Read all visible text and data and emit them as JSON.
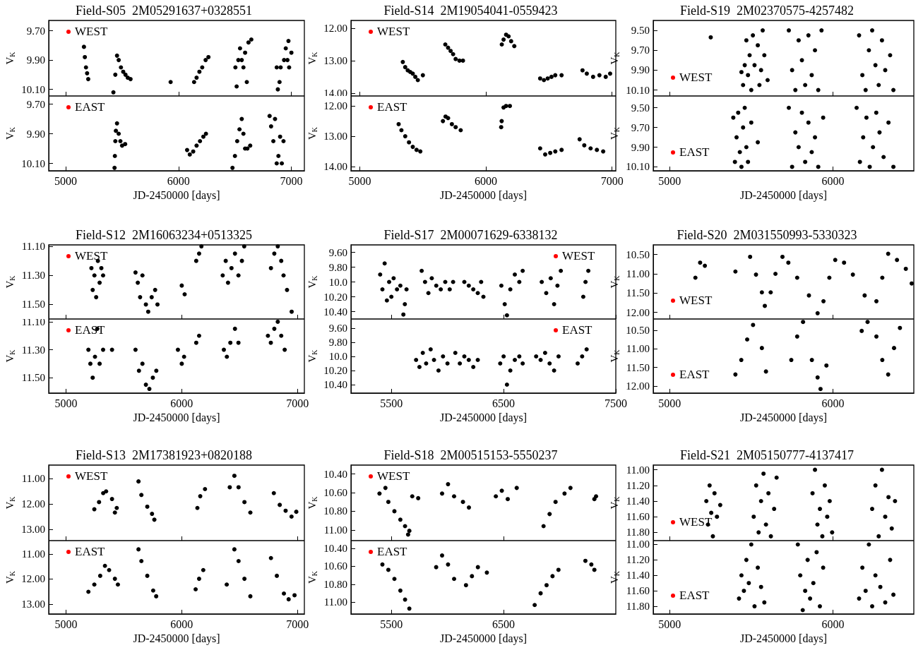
{
  "chart_data": [
    {
      "type": "scatter",
      "title": "Field-S05  2M05291637+0328551",
      "ylabel": "V$_{K}$",
      "annotations": [
        "WEST"
      ],
      "marker": "circle",
      "color": "#000000",
      "tick_labels": "y",
      "xlim": [
        4850,
        7115
      ],
      "xticks": [
        5000,
        6000,
        7000
      ],
      "ylim": [
        10.145,
        9.63
      ],
      "yticks": [
        {
          "value": 9.7,
          "label": "9.70"
        },
        {
          "value": 9.9,
          "label": "9.90"
        },
        {
          "value": 10.1,
          "label": "10.10"
        }
      ],
      "x": [
        5162,
        5170,
        5180,
        5190,
        5200,
        5423,
        5440,
        5455,
        5470,
        5490,
        5510,
        5530,
        5550,
        5575,
        5930,
        6138,
        6160,
        6185,
        6210,
        6240,
        6265,
        6504,
        6515,
        6530,
        6545,
        6560,
        6575,
        6590,
        6605,
        6620,
        6645,
        6870,
        6880,
        6895,
        6905,
        6935,
        6950,
        6965,
        6974,
        6980,
        7000
      ],
      "values": [
        9.81,
        9.88,
        9.95,
        9.99,
        10.03,
        10.12,
        10.0,
        9.87,
        9.9,
        9.95,
        9.98,
        10.0,
        10.02,
        10.03,
        10.05,
        10.05,
        10.02,
        9.98,
        9.95,
        9.9,
        9.88,
        9.95,
        10.08,
        9.9,
        9.82,
        9.9,
        9.95,
        9.85,
        10.05,
        9.78,
        9.76,
        9.95,
        10.1,
        10.05,
        9.95,
        9.9,
        9.82,
        9.9,
        9.77,
        9.95,
        9.85
      ]
    },
    {
      "type": "scatter",
      "xlabel": "JD-2450000 [days]",
      "ylabel": "V$_{K}$",
      "annotations": [
        "EAST"
      ],
      "marker": "circle",
      "color": "#000000",
      "xlim": [
        4850,
        7115
      ],
      "xticks": [
        5000,
        6000,
        7000
      ],
      "ylim": [
        10.15,
        9.645
      ],
      "yticks": [
        {
          "value": 9.7,
          "label": "9.70"
        },
        {
          "value": 9.9,
          "label": "9.90"
        },
        {
          "value": 10.1,
          "label": "10.10"
        }
      ],
      "x": [
        5433,
        5436,
        5440,
        5445,
        5455,
        5470,
        5485,
        5500,
        5527,
        6076,
        6100,
        6130,
        6160,
        6190,
        6220,
        6243,
        6478,
        6500,
        6520,
        6540,
        6560,
        6575,
        6590,
        6610,
        6635,
        6807,
        6820,
        6840,
        6855,
        6870,
        6885,
        6900,
        6915,
        6930
      ],
      "values": [
        10.13,
        10.05,
        9.95,
        9.88,
        9.83,
        9.9,
        9.95,
        9.98,
        9.97,
        10.01,
        10.04,
        10.02,
        9.98,
        9.95,
        9.92,
        9.9,
        10.13,
        10.05,
        9.95,
        9.87,
        9.8,
        9.9,
        10.0,
        10.0,
        9.98,
        9.78,
        9.85,
        9.95,
        9.8,
        10.1,
        10.05,
        9.92,
        10.1,
        9.95
      ]
    },
    {
      "type": "scatter",
      "title": "Field-S14  2M19054041-0559423",
      "ylabel": "V$_{K}$",
      "annotations": [
        "WEST"
      ],
      "marker": "circle",
      "color": "#000000",
      "tick_labels": "y",
      "xlim": [
        4930,
        7030
      ],
      "xticks": [
        5000,
        6000,
        7000
      ],
      "ylim": [
        14.09,
        11.76
      ],
      "yticks": [
        {
          "value": 12,
          "label": "12.00"
        },
        {
          "value": 13,
          "label": "13.00"
        },
        {
          "value": 14,
          "label": "14.00"
        }
      ],
      "x": [
        5341,
        5360,
        5380,
        5400,
        5420,
        5440,
        5460,
        5500,
        5678,
        5700,
        5720,
        5740,
        5760,
        5790,
        5818,
        6126,
        6140,
        6160,
        6180,
        6200,
        6225,
        6430,
        6460,
        6490,
        6520,
        6550,
        6600,
        6766,
        6800,
        6850,
        6900,
        6950,
        6985
      ],
      "values": [
        13.04,
        13.2,
        13.3,
        13.35,
        13.4,
        13.5,
        13.6,
        13.45,
        12.5,
        12.6,
        12.7,
        12.8,
        12.95,
        13.0,
        13.0,
        12.5,
        12.35,
        12.2,
        12.25,
        12.4,
        12.55,
        13.55,
        13.6,
        13.55,
        13.5,
        13.45,
        13.45,
        13.3,
        13.4,
        13.5,
        13.45,
        13.5,
        13.4
      ]
    },
    {
      "type": "scatter",
      "xlabel": "JD-2450000 [days]",
      "ylabel": "V$_{K}$",
      "annotations": [
        "EAST"
      ],
      "marker": "circle",
      "color": "#000000",
      "xlim": [
        4930,
        7030
      ],
      "xticks": [
        5000,
        6000,
        7000
      ],
      "ylim": [
        14.14,
        11.67
      ],
      "yticks": [
        {
          "value": 12,
          "label": "12.00"
        },
        {
          "value": 13,
          "label": "13.00"
        },
        {
          "value": 14,
          "label": "14.00"
        }
      ],
      "x": [
        5308,
        5330,
        5360,
        5390,
        5420,
        5450,
        5480,
        5659,
        5680,
        5700,
        5730,
        5760,
        5800,
        6121,
        6125,
        6140,
        6160,
        6190,
        6430,
        6470,
        6510,
        6550,
        6600,
        6743,
        6780,
        6830,
        6880,
        6930
      ],
      "values": [
        12.6,
        12.8,
        13.0,
        13.2,
        13.35,
        13.45,
        13.5,
        12.5,
        12.35,
        12.4,
        12.6,
        12.7,
        12.8,
        12.7,
        12.5,
        12.05,
        12.0,
        12.0,
        13.4,
        13.6,
        13.55,
        13.5,
        13.45,
        13.1,
        13.3,
        13.4,
        13.45,
        13.5
      ]
    },
    {
      "type": "scatter",
      "title": "Field-S19  2M02370575-4257482",
      "ylabel": "V$_{K}$",
      "annotations": [
        "WEST"
      ],
      "marker": "circle",
      "color": "#000000",
      "tick_labels": "y",
      "xlim": [
        4900,
        6495
      ],
      "xticks": [
        5000,
        6000
      ],
      "ylim": [
        10.16,
        9.4
      ],
      "yticks": [
        {
          "value": 9.5,
          "label": "9.50"
        },
        {
          "value": 9.7,
          "label": "9.70"
        },
        {
          "value": 9.9,
          "label": "9.90"
        },
        {
          "value": 10.1,
          "label": "10.10"
        }
      ],
      "x": [
        5252,
        5440,
        5450,
        5460,
        5470,
        5480,
        5490,
        5500,
        5510,
        5520,
        5540,
        5550,
        5560,
        5570,
        5580,
        5600,
        5730,
        5750,
        5770,
        5790,
        5810,
        5830,
        5850,
        5870,
        5890,
        5910,
        5930,
        6160,
        6180,
        6200,
        6220,
        6240,
        6260,
        6280,
        6300,
        6320,
        6350,
        6370
      ],
      "values": [
        9.57,
        9.92,
        10.05,
        9.85,
        9.6,
        9.95,
        9.75,
        10.1,
        9.55,
        9.85,
        9.65,
        10.05,
        9.9,
        9.5,
        9.75,
        10.0,
        9.5,
        9.9,
        10.1,
        9.6,
        9.8,
        10.05,
        9.55,
        9.95,
        9.7,
        10.1,
        9.5,
        9.55,
        9.95,
        10.1,
        9.7,
        9.5,
        9.85,
        10.05,
        9.6,
        9.9,
        9.75,
        10.1
      ]
    },
    {
      "type": "scatter",
      "xlabel": "JD-2450000 [days]",
      "ylabel": "V$_{K}$",
      "annotations": [
        "EAST"
      ],
      "marker": "circle",
      "color": "#000000",
      "xlim": [
        4900,
        6495
      ],
      "xticks": [
        5000,
        6000
      ],
      "ylim": [
        10.14,
        9.38
      ],
      "yticks": [
        {
          "value": 9.5,
          "label": "9.50"
        },
        {
          "value": 9.7,
          "label": "9.70"
        },
        {
          "value": 9.9,
          "label": "9.90"
        },
        {
          "value": 10.1,
          "label": "10.10"
        }
      ],
      "x": [
        5390,
        5400,
        5410,
        5420,
        5430,
        5440,
        5450,
        5460,
        5470,
        5480,
        5500,
        5540,
        5730,
        5750,
        5770,
        5790,
        5810,
        5830,
        5850,
        5870,
        5890,
        5910,
        5940,
        6145,
        6165,
        6185,
        6205,
        6225,
        6245,
        6265,
        6285,
        6310,
        6340,
        6370
      ],
      "values": [
        9.6,
        10.05,
        9.8,
        9.55,
        9.95,
        10.1,
        9.7,
        9.5,
        9.9,
        10.05,
        9.65,
        9.85,
        9.5,
        10.1,
        9.75,
        9.9,
        9.55,
        10.05,
        9.65,
        9.95,
        9.8,
        10.1,
        9.6,
        9.5,
        10.05,
        9.8,
        9.6,
        10.1,
        9.9,
        9.55,
        9.75,
        10.0,
        9.65,
        10.1
      ]
    },
    {
      "type": "scatter",
      "title": "Field-S12  2M16063234+0513325",
      "ylabel": "V$_{K}$",
      "annotations": [
        "WEST"
      ],
      "marker": "circle",
      "color": "#000000",
      "tick_labels": "y",
      "xlim": [
        4850,
        7060
      ],
      "xticks": [
        5000,
        6000,
        7000
      ],
      "ylim": [
        11.6,
        11.09
      ],
      "yticks": [
        {
          "value": 11.1,
          "label": "11.10"
        },
        {
          "value": 11.3,
          "label": "11.30"
        },
        {
          "value": 11.5,
          "label": "11.50"
        }
      ],
      "x": [
        5219,
        5230,
        5245,
        5260,
        5275,
        5290,
        5305,
        5320,
        5600,
        5620,
        5640,
        5660,
        5690,
        5710,
        5740,
        5770,
        5790,
        6000,
        6025,
        6125,
        6150,
        6170,
        6354,
        6380,
        6400,
        6430,
        6460,
        6490,
        6520,
        6540,
        6771,
        6800,
        6830,
        6860,
        6880,
        6910,
        6950
      ],
      "values": [
        11.25,
        11.4,
        11.3,
        11.45,
        11.2,
        11.35,
        11.25,
        11.3,
        11.28,
        11.35,
        11.45,
        11.3,
        11.5,
        11.55,
        11.45,
        11.4,
        11.5,
        11.37,
        11.43,
        11.2,
        11.15,
        11.1,
        11.3,
        11.2,
        11.35,
        11.25,
        11.15,
        11.3,
        11.2,
        11.1,
        11.25,
        11.15,
        11.1,
        11.2,
        11.3,
        11.4,
        11.55
      ]
    },
    {
      "type": "scatter",
      "xlabel": "JD-2450000 [days]",
      "ylabel": "V$_{K}$",
      "annotations": [
        "EAST"
      ],
      "marker": "circle",
      "color": "#000000",
      "xlim": [
        4850,
        7060
      ],
      "xticks": [
        5000,
        6000,
        7000
      ],
      "ylim": [
        11.61,
        11.08
      ],
      "yticks": [
        {
          "value": 11.1,
          "label": "11.10"
        },
        {
          "value": 11.3,
          "label": "11.30"
        },
        {
          "value": 11.5,
          "label": "11.50"
        }
      ],
      "x": [
        5193,
        5210,
        5230,
        5250,
        5270,
        5290,
        5320,
        5397,
        5600,
        5630,
        5660,
        5690,
        5720,
        5750,
        5780,
        5967,
        6000,
        6020,
        6125,
        6150,
        6364,
        6390,
        6420,
        6460,
        6490,
        6745,
        6770,
        6800,
        6830,
        6860,
        6890
      ],
      "values": [
        11.3,
        11.4,
        11.5,
        11.35,
        11.15,
        11.4,
        11.3,
        11.3,
        11.3,
        11.45,
        11.4,
        11.55,
        11.58,
        11.5,
        11.45,
        11.3,
        11.4,
        11.35,
        11.25,
        11.2,
        11.3,
        11.35,
        11.25,
        11.15,
        11.25,
        11.2,
        11.25,
        11.15,
        11.1,
        11.2,
        11.3
      ]
    },
    {
      "type": "scatter",
      "title": "Field-S17  2M00071629-6338132",
      "ylabel": "V$_{K}$",
      "annotations": [
        "WEST"
      ],
      "marker": "circle",
      "color": "#000000",
      "tick_labels": "y",
      "xlim": [
        5140,
        7500
      ],
      "xticks": [
        5500,
        6500,
        7500
      ],
      "ylim": [
        10.5,
        9.5
      ],
      "yticks": [
        {
          "value": 9.6,
          "label": "9.60"
        },
        {
          "value": 9.8,
          "label": "9.80"
        },
        {
          "value": 10.0,
          "label": "10.0"
        },
        {
          "value": 10.2,
          "label": "10.20"
        },
        {
          "value": 10.4,
          "label": "10.40"
        }
      ],
      "x": [
        5400,
        5420,
        5440,
        5460,
        5480,
        5500,
        5520,
        5550,
        5580,
        5607,
        5620,
        5635,
        5770,
        5800,
        5830,
        5860,
        5900,
        5940,
        5980,
        6020,
        6050,
        6150,
        6190,
        6230,
        6270,
        6300,
        6320,
        6480,
        6510,
        6530,
        6560,
        6600,
        6640,
        6670,
        6840,
        6880,
        6920,
        6950,
        6980,
        7010,
        7210,
        7230,
        7255
      ],
      "values": [
        9.9,
        10.1,
        9.75,
        10.25,
        10.0,
        10.2,
        9.95,
        10.1,
        10.05,
        10.44,
        10.3,
        10.1,
        9.85,
        10.0,
        10.15,
        9.95,
        10.05,
        10.1,
        10.0,
        10.1,
        10.0,
        10.0,
        10.05,
        10.1,
        10.15,
        10.0,
        10.2,
        10.05,
        10.3,
        10.45,
        10.1,
        9.9,
        10.0,
        9.85,
        10.0,
        10.15,
        9.95,
        10.3,
        10.05,
        9.85,
        10.2,
        10.0,
        9.85
      ]
    },
    {
      "type": "scatter",
      "xlabel": "JD-2450000 [days]",
      "ylabel": "V$_{K}$",
      "annotations": [
        "EAST"
      ],
      "marker": "circle",
      "color": "#000000",
      "xlim": [
        5140,
        7500
      ],
      "xticks": [
        5500,
        6500,
        7500
      ],
      "ylim": [
        10.52,
        9.47
      ],
      "yticks": [
        {
          "value": 9.6,
          "label": "9.60"
        },
        {
          "value": 9.8,
          "label": "9.80"
        },
        {
          "value": 10.0,
          "label": "10.0"
        },
        {
          "value": 10.2,
          "label": "10.20"
        },
        {
          "value": 10.4,
          "label": "10.40"
        }
      ],
      "x": [
        5720,
        5750,
        5780,
        5810,
        5850,
        5880,
        5920,
        5960,
        6000,
        6070,
        6110,
        6150,
        6190,
        6230,
        6270,
        6470,
        6500,
        6530,
        6560,
        6600,
        6640,
        6670,
        6790,
        6830,
        6870,
        6910,
        6950,
        6990,
        7160,
        7200,
        7240
      ],
      "values": [
        10.05,
        10.15,
        9.95,
        10.1,
        9.9,
        10.05,
        10.2,
        10.0,
        10.1,
        9.95,
        10.1,
        10.0,
        10.05,
        10.15,
        10.05,
        10.1,
        10.0,
        10.4,
        10.2,
        10.05,
        10.0,
        10.1,
        10.0,
        10.05,
        9.95,
        10.1,
        10.2,
        10.0,
        10.1,
        10.0,
        9.9
      ]
    },
    {
      "type": "scatter",
      "title": "Field-S20  2M031550993-5330323",
      "ylabel": "V$_{K}$",
      "annotations": [
        "WEST"
      ],
      "marker": "circle",
      "color": "#000000",
      "tick_labels": "y",
      "xlim": [
        4900,
        6495
      ],
      "xticks": [
        5000,
        6000
      ],
      "ylim": [
        12.17,
        10.25
      ],
      "yticks": [
        {
          "value": 10.5,
          "label": "10.50"
        },
        {
          "value": 11,
          "label": "11.00"
        },
        {
          "value": 11.5,
          "label": "11.50"
        },
        {
          "value": 12,
          "label": "12.00"
        }
      ],
      "x": [
        5158,
        5187,
        5216,
        5403,
        5493,
        5529,
        5565,
        5583,
        5619,
        5648,
        5691,
        5727,
        5781,
        5853,
        5906,
        5942,
        5978,
        6014,
        6068,
        6122,
        6194,
        6266,
        6302,
        6338,
        6392,
        6446,
        6482
      ],
      "values": [
        11.1,
        10.71,
        10.79,
        10.94,
        10.56,
        11.02,
        11.48,
        11.83,
        11.48,
        11.0,
        10.56,
        10.71,
        11.1,
        11.56,
        12.02,
        11.71,
        11.1,
        10.64,
        10.71,
        11.02,
        11.56,
        11.71,
        11.1,
        10.48,
        10.64,
        10.87,
        11.25
      ]
    },
    {
      "type": "scatter",
      "xlabel": "JD-2450000 [days]",
      "ylabel": "V$_{K}$",
      "annotations": [
        "EAST"
      ],
      "marker": "circle",
      "color": "#000000",
      "xlim": [
        4900,
        6495
      ],
      "xticks": [
        5000,
        6000
      ],
      "ylim": [
        12.19,
        10.2
      ],
      "yticks": [
        {
          "value": 10.5,
          "label": "10.50"
        },
        {
          "value": 11,
          "label": "11.00"
        },
        {
          "value": 11.5,
          "label": "11.50"
        },
        {
          "value": 12,
          "label": "12.00"
        }
      ],
      "x": [
        5403,
        5439,
        5475,
        5511,
        5565,
        5590,
        5745,
        5781,
        5817,
        5871,
        5906,
        5924,
        5960,
        6176,
        6212,
        6266,
        6302,
        6338,
        6374,
        6410
      ],
      "values": [
        11.69,
        11.3,
        10.75,
        10.36,
        10.98,
        11.61,
        11.3,
        10.67,
        10.28,
        11.3,
        11.77,
        12.08,
        11.45,
        10.52,
        10.28,
        10.67,
        11.3,
        11.69,
        10.98,
        10.44
      ]
    },
    {
      "type": "scatter",
      "title": "Field-S13  2M17381923+0820188",
      "ylabel": "V$_{K}$",
      "annotations": [
        "WEST"
      ],
      "marker": "circle",
      "color": "#000000",
      "tick_labels": "y",
      "xlim": [
        4850,
        7060
      ],
      "xticks": [
        5000,
        6000,
        7000
      ],
      "ylim": [
        13.43,
        10.47
      ],
      "yticks": [
        {
          "value": 11,
          "label": "11.00"
        },
        {
          "value": 12,
          "label": "12.00"
        },
        {
          "value": 13,
          "label": "13.00"
        }
      ],
      "x": [
        5244,
        5285,
        5321,
        5346,
        5397,
        5422,
        5438,
        5626,
        5651,
        5702,
        5743,
        5763,
        6135,
        6160,
        6201,
        6415,
        6455,
        6491,
        6542,
        6593,
        6796,
        6847,
        6898,
        6949,
        6990
      ],
      "values": [
        12.2,
        11.92,
        11.57,
        11.5,
        11.8,
        12.33,
        12.15,
        11.11,
        11.64,
        12.1,
        12.38,
        12.61,
        12.15,
        11.69,
        11.41,
        11.34,
        10.89,
        11.34,
        11.92,
        12.33,
        11.57,
        12.03,
        12.26,
        12.49,
        12.3
      ]
    },
    {
      "type": "scatter",
      "xlabel": "JD-2450000 [days]",
      "ylabel": "V$_{K}$",
      "annotations": [
        "EAST"
      ],
      "marker": "circle",
      "color": "#000000",
      "xlim": [
        4850,
        7060
      ],
      "xticks": [
        5000,
        6000,
        7000
      ],
      "ylim": [
        13.4,
        10.46
      ],
      "yticks": [
        {
          "value": 11,
          "label": "11.00"
        },
        {
          "value": 12,
          "label": "12.00"
        },
        {
          "value": 13,
          "label": "13.00"
        }
      ],
      "x": [
        5193,
        5244,
        5295,
        5336,
        5372,
        5422,
        5448,
        5626,
        5651,
        5702,
        5753,
        5779,
        6120,
        6150,
        6186,
        6389,
        6455,
        6491,
        6542,
        6593,
        6771,
        6822,
        6883,
        6924,
        6975
      ],
      "values": [
        12.51,
        12.22,
        11.87,
        11.47,
        11.64,
        11.99,
        12.22,
        10.81,
        11.28,
        11.87,
        12.46,
        12.69,
        12.41,
        11.99,
        11.64,
        12.22,
        10.81,
        11.28,
        11.99,
        12.69,
        11.16,
        11.87,
        12.58,
        12.81,
        12.65
      ]
    },
    {
      "type": "scatter",
      "title": "Field-S18  2M00515153-5550237",
      "ylabel": "V$_{K}$",
      "annotations": [
        "WEST"
      ],
      "marker": "circle",
      "color": "#000000",
      "tick_labels": "y",
      "xlim": [
        5140,
        7500
      ],
      "xticks": [
        5500,
        6500
      ],
      "ylim": [
        11.115,
        10.305
      ],
      "yticks": [
        {
          "value": 10.4,
          "label": "10.40"
        },
        {
          "value": 10.6,
          "label": "10.60"
        },
        {
          "value": 10.8,
          "label": "10.80"
        },
        {
          "value": 11,
          "label": "11.00"
        }
      ],
      "x": [
        5394,
        5447,
        5473,
        5527,
        5580,
        5622,
        5649,
        5660,
        5686,
        5739,
        5952,
        6005,
        6059,
        6138,
        6191,
        6431,
        6484,
        6537,
        6617,
        6856,
        6910,
        6963,
        7043,
        7096,
        7309,
        7324
      ],
      "values": [
        10.61,
        10.55,
        10.7,
        10.8,
        10.89,
        10.96,
        11.05,
        11.01,
        10.64,
        10.66,
        10.61,
        10.51,
        10.64,
        10.7,
        10.76,
        10.64,
        10.58,
        10.67,
        10.55,
        10.96,
        10.83,
        10.7,
        10.61,
        10.55,
        10.67,
        10.64
      ]
    },
    {
      "type": "scatter",
      "xlabel": "JD-2450000 [days]",
      "ylabel": "V$_{K}$",
      "annotations": [
        "EAST"
      ],
      "marker": "circle",
      "color": "#000000",
      "xlim": [
        5140,
        7500
      ],
      "xticks": [
        5500,
        6500
      ],
      "ylim": [
        11.13,
        10.315
      ],
      "yticks": [
        {
          "value": 10.4,
          "label": "10.40"
        },
        {
          "value": 10.6,
          "label": "10.60"
        },
        {
          "value": 10.8,
          "label": "10.80"
        },
        {
          "value": 11,
          "label": "11.00"
        }
      ],
      "x": [
        5420,
        5473,
        5527,
        5580,
        5622,
        5660,
        5899,
        5952,
        6005,
        6059,
        6165,
        6218,
        6271,
        6351,
        6777,
        6830,
        6883,
        6936,
        6989,
        7229,
        7282,
        7309
      ],
      "values": [
        10.58,
        10.64,
        10.74,
        10.87,
        10.97,
        11.07,
        10.61,
        10.48,
        10.58,
        10.74,
        10.81,
        10.71,
        10.61,
        10.67,
        11.03,
        10.9,
        10.81,
        10.71,
        10.64,
        10.54,
        10.58,
        10.64
      ]
    },
    {
      "type": "scatter",
      "title": "Field-S21  2M05150777-4137417",
      "ylabel": "V$_{K}$",
      "annotations": [
        "WEST"
      ],
      "marker": "circle",
      "color": "#000000",
      "tick_labels": "y",
      "xlim": [
        4900,
        6495
      ],
      "xticks": [
        5000,
        6000
      ],
      "ylim": [
        11.905,
        10.94
      ],
      "yticks": [
        {
          "value": 11,
          "label": "11.00"
        },
        {
          "value": 11.2,
          "label": "11.20"
        },
        {
          "value": 11.4,
          "label": "11.40"
        },
        {
          "value": 11.6,
          "label": "11.60"
        },
        {
          "value": 11.8,
          "label": "11.80"
        }
      ],
      "x": [
        5225,
        5235,
        5245,
        5255,
        5265,
        5275,
        5290,
        5310,
        5515,
        5530,
        5545,
        5560,
        5575,
        5590,
        5605,
        5620,
        5640,
        5655,
        5875,
        5890,
        5905,
        5920,
        5935,
        5950,
        5965,
        5980,
        5995,
        6240,
        6260,
        6280,
        6300,
        6320,
        6340,
        6360,
        6380
      ],
      "values": [
        11.4,
        11.7,
        11.2,
        11.55,
        11.85,
        11.3,
        11.6,
        11.45,
        11.6,
        11.2,
        11.8,
        11.4,
        11.05,
        11.7,
        11.3,
        11.85,
        11.5,
        11.1,
        11.3,
        11.0,
        11.7,
        11.5,
        11.85,
        11.2,
        11.6,
        11.4,
        11.8,
        11.5,
        11.2,
        11.85,
        11.0,
        11.6,
        11.35,
        11.75,
        11.4
      ]
    },
    {
      "type": "scatter",
      "xlabel": "JD-2450000 [days]",
      "ylabel": "V$_{K}$",
      "annotations": [
        "EAST"
      ],
      "marker": "circle",
      "color": "#000000",
      "xlim": [
        4900,
        6495
      ],
      "xticks": [
        5000,
        6000
      ],
      "ylim": [
        11.9,
        10.95
      ],
      "yticks": [
        {
          "value": 11,
          "label": "11.00"
        },
        {
          "value": 11.2,
          "label": "11.20"
        },
        {
          "value": 11.4,
          "label": "11.40"
        },
        {
          "value": 11.6,
          "label": "11.60"
        },
        {
          "value": 11.8,
          "label": "11.80"
        }
      ],
      "x": [
        5425,
        5440,
        5455,
        5470,
        5485,
        5500,
        5520,
        5540,
        5560,
        5580,
        5785,
        5800,
        5815,
        5830,
        5845,
        5860,
        5880,
        5900,
        5920,
        5940,
        6160,
        6180,
        6200,
        6220,
        6240,
        6260,
        6290,
        6320,
        6350,
        6370
      ],
      "values": [
        11.7,
        11.4,
        11.6,
        11.2,
        11.5,
        11.0,
        11.8,
        11.3,
        11.55,
        11.75,
        11.0,
        11.4,
        11.85,
        11.6,
        11.2,
        11.7,
        11.5,
        11.1,
        11.8,
        11.3,
        11.7,
        11.3,
        11.6,
        11.0,
        11.8,
        11.4,
        11.55,
        11.75,
        11.2,
        11.65
      ]
    }
  ]
}
